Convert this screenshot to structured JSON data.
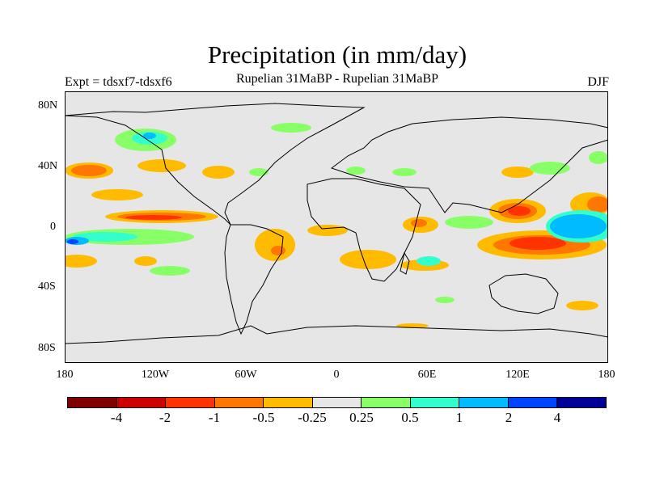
{
  "header": {
    "title": "Precipitation (in mm/day)",
    "subtitle": "Rupelian  31MaBP - Rupelian  31MaBP",
    "left_label": "Expt = tdsxf7-tdsxf6",
    "right_label": "DJF"
  },
  "axes": {
    "y_ticks": [
      "80N",
      "40N",
      "0",
      "40S",
      "80S"
    ],
    "x_ticks": [
      "180",
      "120W",
      "60W",
      "0",
      "60E",
      "120E",
      "180"
    ]
  },
  "colorbar": {
    "colors": [
      "#800000",
      "#cc0000",
      "#ff3300",
      "#ff7700",
      "#ffbb00",
      "#e6e6e6",
      "#88ff66",
      "#33ffcc",
      "#00bbff",
      "#0044ff",
      "#000099"
    ],
    "labels": [
      "-4",
      "-2",
      "-1",
      "-0.5",
      "-0.25",
      "0.25",
      "0.5",
      "1",
      "2",
      "4"
    ]
  },
  "colors": {
    "ocean_neutral": "#e6e6e6",
    "coast": "#000000"
  }
}
